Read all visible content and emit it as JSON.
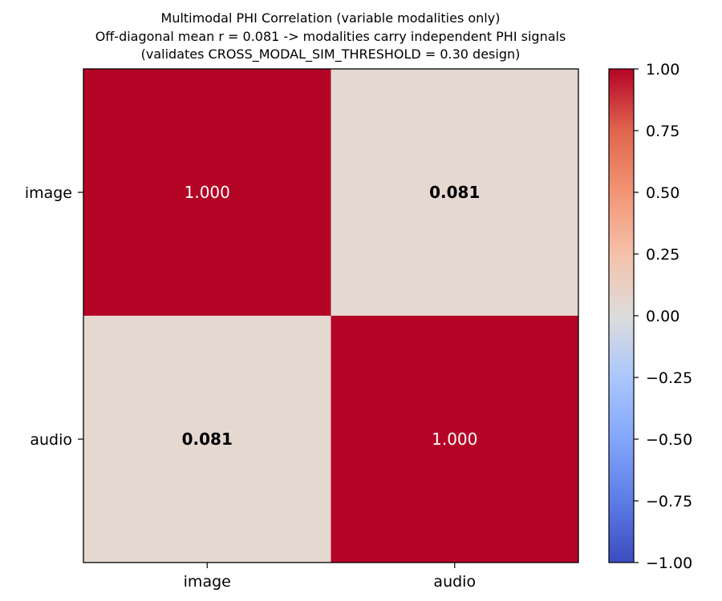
{
  "chart_data": {
    "type": "heatmap",
    "title_lines": [
      "Multimodal PHI Correlation (variable modalities only)",
      "Off-diagonal mean r = 0.081  ->  modalities carry independent PHI signals",
      "(validates CROSS_MODAL_SIM_THRESHOLD = 0.30 design)"
    ],
    "x_categories": [
      "image",
      "audio"
    ],
    "y_categories": [
      "image",
      "audio"
    ],
    "values": [
      [
        1.0,
        0.081
      ],
      [
        0.081,
        1.0
      ]
    ],
    "cell_labels": [
      [
        "1.000",
        "0.081"
      ],
      [
        "0.081",
        "1.000"
      ]
    ],
    "cell_label_bold": [
      [
        false,
        true
      ],
      [
        true,
        false
      ]
    ],
    "colormap": "coolwarm",
    "vmin": -1.0,
    "vmax": 1.0,
    "colorbar_ticks": [
      1.0,
      0.75,
      0.5,
      0.25,
      0.0,
      -0.25,
      -0.5,
      -0.75,
      -1.0
    ],
    "colorbar_tick_labels": [
      "1.00",
      "0.75",
      "0.50",
      "0.25",
      "0.00",
      "−0.25",
      "−0.50",
      "−0.75",
      "−1.00"
    ],
    "colors": {
      "high": "#b40426",
      "off_diagonal": "#e5d8d1",
      "mid": "#dddcdc",
      "low": "#3b4cc0"
    },
    "grid": false
  }
}
